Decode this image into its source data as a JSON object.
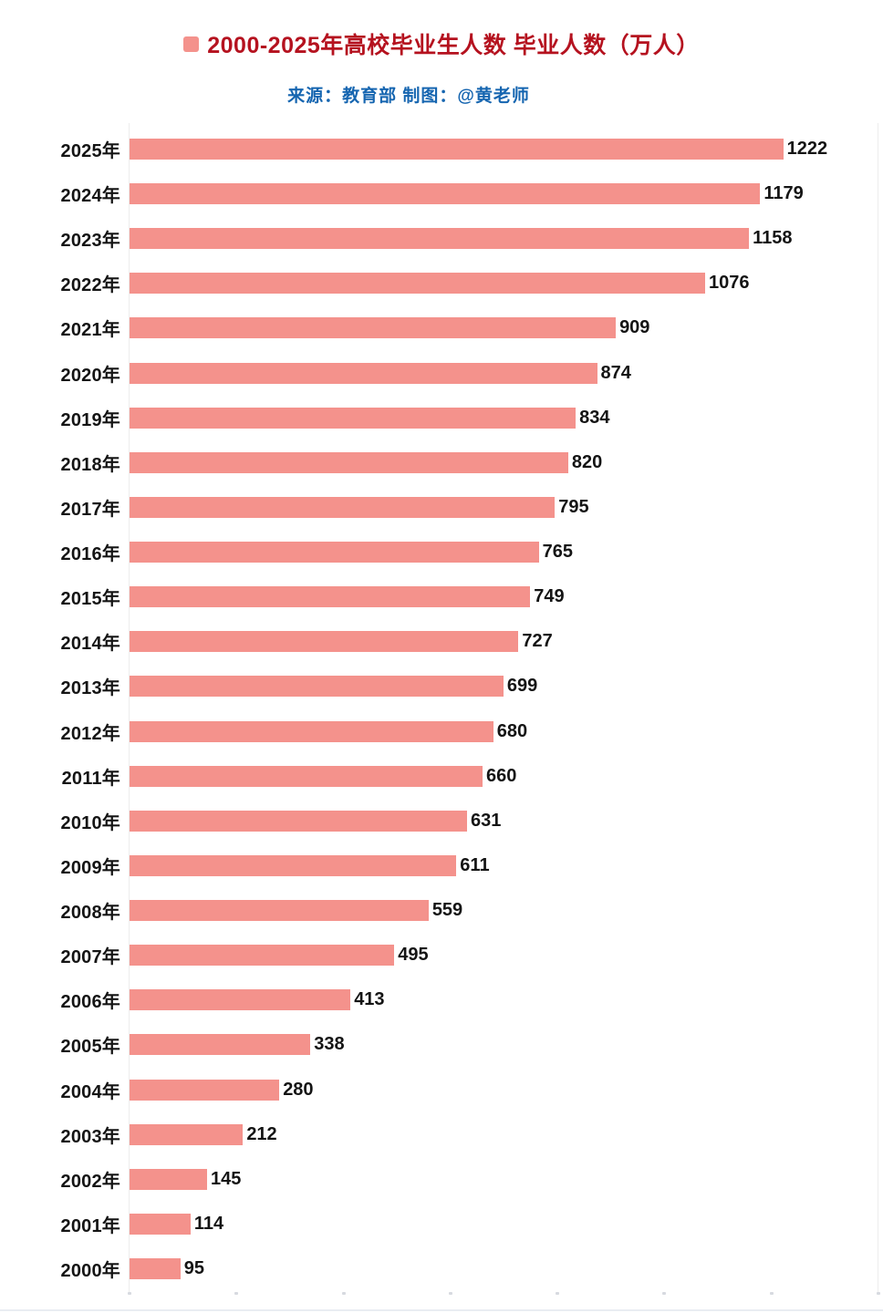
{
  "header": {
    "title": "2000-2025年高校毕业生人数 毕业人数（万人）",
    "title_color": "#b5121f",
    "subtitle": "来源：教育部  制图：@黄老师",
    "subtitle_color": "#1565b0"
  },
  "chart_data": {
    "type": "bar",
    "orientation": "horizontal",
    "title": "2000-2025年高校毕业生人数",
    "series_name": "毕业人数（万人）",
    "unit": "万人",
    "categories": [
      "2025年",
      "2024年",
      "2023年",
      "2022年",
      "2021年",
      "2020年",
      "2019年",
      "2018年",
      "2017年",
      "2016年",
      "2015年",
      "2014年",
      "2013年",
      "2012年",
      "2011年",
      "2010年",
      "2009年",
      "2008年",
      "2007年",
      "2006年",
      "2005年",
      "2004年",
      "2003年",
      "2002年",
      "2001年",
      "2000年"
    ],
    "values": [
      1222,
      1179,
      1158,
      1076,
      909,
      874,
      834,
      820,
      795,
      765,
      749,
      727,
      699,
      680,
      660,
      631,
      611,
      559,
      495,
      413,
      338,
      280,
      212,
      145,
      114,
      95
    ],
    "xlim": [
      0,
      1400
    ],
    "x_ticks": [
      0,
      200,
      400,
      600,
      800,
      1000,
      1200,
      1400
    ],
    "grid": false,
    "legend_position": "top-center",
    "bar_color": "#f4928c",
    "label_color": "#141414"
  }
}
